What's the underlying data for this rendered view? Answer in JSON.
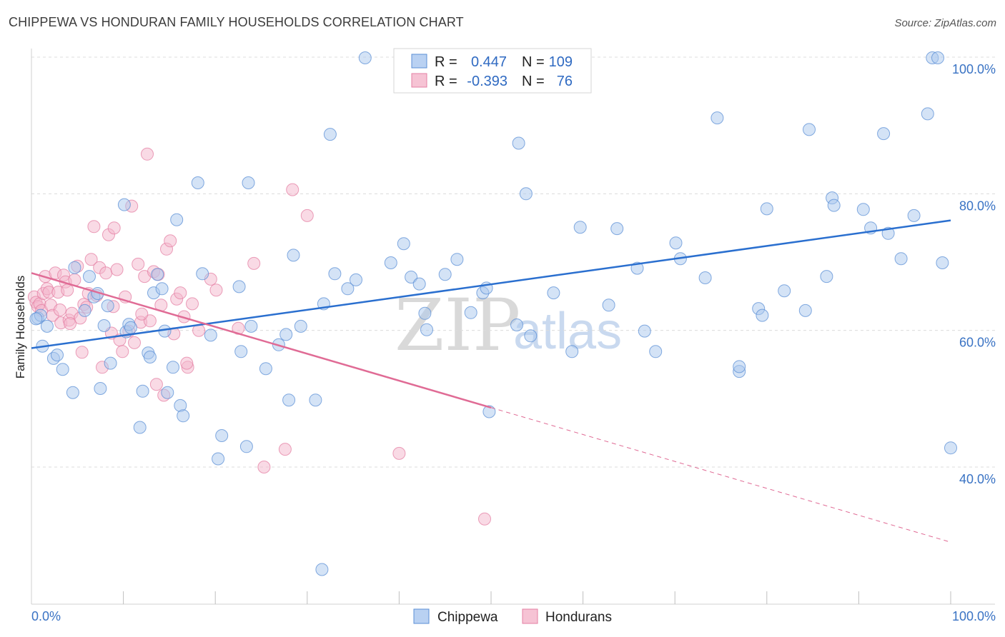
{
  "header": {
    "title": "CHIPPEWA VS HONDURAN FAMILY HOUSEHOLDS CORRELATION CHART",
    "source": "Source: ZipAtlas.com"
  },
  "watermark": {
    "zip": "ZIP",
    "atlas": "atlas"
  },
  "legend": {
    "rows": [
      {
        "r_label": "R =",
        "r_value": "0.447",
        "n_label": "N =",
        "n_value": "109",
        "color": "#5b8fd6",
        "fill": "#b9d1f2"
      },
      {
        "r_label": "R =",
        "r_value": "-0.393",
        "n_label": "N =",
        "n_value": "76",
        "color": "#e47fa3",
        "fill": "#f6c3d4"
      }
    ]
  },
  "bottom_legend": [
    {
      "label": "Chippewa",
      "fill": "#b9d1f2",
      "stroke": "#5b8fd6"
    },
    {
      "label": "Hondurans",
      "fill": "#f6c3d4",
      "stroke": "#e47fa3"
    }
  ],
  "colors": {
    "chippewa": "#5b8fd6",
    "chippewa_fill": "#a9c7ee",
    "chippewa_line": "#2a6fcf",
    "hondurans": "#e47fa3",
    "hondurans_fill": "#f4b6cb",
    "hondurans_line": "#e06b95",
    "grid": "#dcdcdc",
    "tick_label": "#3a73c4"
  },
  "chart_data": {
    "type": "scatter",
    "title": "CHIPPEWA VS HONDURAN FAMILY HOUSEHOLDS CORRELATION CHART",
    "xlabel": "",
    "ylabel": "Family Households",
    "xlim": [
      0,
      100
    ],
    "ylim": [
      21.5,
      102
    ],
    "x_tick_labels": [
      "0.0%",
      "100.0%"
    ],
    "y_ticks": [
      40,
      60,
      80,
      100
    ],
    "y_tick_labels": [
      "40.0%",
      "60.0%",
      "80.0%",
      "100.0%"
    ],
    "grid": true,
    "legend_position": "top-center",
    "series": [
      {
        "name": "Chippewa",
        "r": 0.447,
        "n": 109,
        "trend": {
          "x": [
            0,
            100
          ],
          "y": [
            57.4,
            76.1
          ]
        },
        "points": [
          [
            0.7,
            61.8
          ],
          [
            1.0,
            62.2
          ],
          [
            1.2,
            57.7
          ],
          [
            1.7,
            60.6
          ],
          [
            2.4,
            55.9
          ],
          [
            2.8,
            56.4
          ],
          [
            3.4,
            54.3
          ],
          [
            4.5,
            50.9
          ],
          [
            4.7,
            69.2
          ],
          [
            5.8,
            62.9
          ],
          [
            6.3,
            67.9
          ],
          [
            6.8,
            64.9
          ],
          [
            7.2,
            65.4
          ],
          [
            7.5,
            51.5
          ],
          [
            7.9,
            60.7
          ],
          [
            8.3,
            63.6
          ],
          [
            8.6,
            55.2
          ],
          [
            10.1,
            78.4
          ],
          [
            10.3,
            59.8
          ],
          [
            10.6,
            60.9
          ],
          [
            10.8,
            60.4
          ],
          [
            11.8,
            45.8
          ],
          [
            12.1,
            51.1
          ],
          [
            12.7,
            56.7
          ],
          [
            12.9,
            56.1
          ],
          [
            13.3,
            65.5
          ],
          [
            13.7,
            68.2
          ],
          [
            14.2,
            66.1
          ],
          [
            14.5,
            59.9
          ],
          [
            14.8,
            50.9
          ],
          [
            15.4,
            54.6
          ],
          [
            15.8,
            76.2
          ],
          [
            16.2,
            49.0
          ],
          [
            16.5,
            47.5
          ],
          [
            18.1,
            81.6
          ],
          [
            18.6,
            68.3
          ],
          [
            19.5,
            59.3
          ],
          [
            20.7,
            44.6
          ],
          [
            20.3,
            41.2
          ],
          [
            22.6,
            66.4
          ],
          [
            22.8,
            56.9
          ],
          [
            23.4,
            43.0
          ],
          [
            23.6,
            81.6
          ],
          [
            23.9,
            60.6
          ],
          [
            25.5,
            54.4
          ],
          [
            26.9,
            57.9
          ],
          [
            27.7,
            59.4
          ],
          [
            28.0,
            49.8
          ],
          [
            28.5,
            71.0
          ],
          [
            29.3,
            60.6
          ],
          [
            30.9,
            49.8
          ],
          [
            31.6,
            25.0
          ],
          [
            31.8,
            63.9
          ],
          [
            32.5,
            88.7
          ],
          [
            33.0,
            68.3
          ],
          [
            34.4,
            66.1
          ],
          [
            35.3,
            67.4
          ],
          [
            36.3,
            99.9
          ],
          [
            39.1,
            69.9
          ],
          [
            40.5,
            72.7
          ],
          [
            41.3,
            67.8
          ],
          [
            42.2,
            66.8
          ],
          [
            42.8,
            62.5
          ],
          [
            43.0,
            60.1
          ],
          [
            45.0,
            68.2
          ],
          [
            46.3,
            70.4
          ],
          [
            47.8,
            62.6
          ],
          [
            49.1,
            65.5
          ],
          [
            49.5,
            66.2
          ],
          [
            49.8,
            48.1
          ],
          [
            52.8,
            60.8
          ],
          [
            53.0,
            87.4
          ],
          [
            53.8,
            80.0
          ],
          [
            54.3,
            59.2
          ],
          [
            56.8,
            65.5
          ],
          [
            58.8,
            56.9
          ],
          [
            59.7,
            75.1
          ],
          [
            62.8,
            63.7
          ],
          [
            63.7,
            74.9
          ],
          [
            65.9,
            69.1
          ],
          [
            66.7,
            59.9
          ],
          [
            67.9,
            56.9
          ],
          [
            70.1,
            72.8
          ],
          [
            70.6,
            70.5
          ],
          [
            73.3,
            67.7
          ],
          [
            74.6,
            91.1
          ],
          [
            77.0,
            54.0
          ],
          [
            77.0,
            54.7
          ],
          [
            79.1,
            63.2
          ],
          [
            79.5,
            62.2
          ],
          [
            80.0,
            77.8
          ],
          [
            81.9,
            65.8
          ],
          [
            84.2,
            62.9
          ],
          [
            84.6,
            89.4
          ],
          [
            86.5,
            67.9
          ],
          [
            87.1,
            79.4
          ],
          [
            87.3,
            78.3
          ],
          [
            90.5,
            77.7
          ],
          [
            91.3,
            75.0
          ],
          [
            92.7,
            88.8
          ],
          [
            93.2,
            74.2
          ],
          [
            94.6,
            70.5
          ],
          [
            96.0,
            76.8
          ],
          [
            97.5,
            91.7
          ],
          [
            98.0,
            99.9
          ],
          [
            98.6,
            99.9
          ],
          [
            99.1,
            69.9
          ],
          [
            100.0,
            42.8
          ],
          [
            0.5,
            61.7
          ]
        ]
      },
      {
        "name": "Hondurans",
        "r": -0.393,
        "n": 76,
        "trend": {
          "x": [
            0,
            100
          ],
          "y": [
            68.4,
            29.0
          ]
        },
        "trend_solid_until_x": 50,
        "points": [
          [
            0.3,
            64.9
          ],
          [
            0.5,
            64.1
          ],
          [
            0.7,
            63.5
          ],
          [
            0.9,
            63.9
          ],
          [
            1.1,
            62.9
          ],
          [
            1.3,
            65.4
          ],
          [
            1.5,
            67.9
          ],
          [
            1.7,
            66.1
          ],
          [
            1.9,
            65.6
          ],
          [
            2.1,
            63.7
          ],
          [
            2.3,
            62.2
          ],
          [
            2.6,
            68.4
          ],
          [
            2.9,
            65.6
          ],
          [
            3.2,
            61.1
          ],
          [
            3.5,
            68.1
          ],
          [
            3.7,
            67.1
          ],
          [
            3.9,
            65.9
          ],
          [
            4.1,
            61.5
          ],
          [
            4.4,
            62.5
          ],
          [
            4.7,
            67.4
          ],
          [
            5.0,
            69.4
          ],
          [
            5.3,
            61.8
          ],
          [
            5.7,
            63.8
          ],
          [
            6.0,
            63.4
          ],
          [
            6.2,
            65.4
          ],
          [
            6.5,
            70.4
          ],
          [
            6.8,
            75.2
          ],
          [
            7.1,
            65.1
          ],
          [
            7.4,
            69.2
          ],
          [
            7.7,
            54.6
          ],
          [
            8.1,
            68.4
          ],
          [
            8.4,
            74.0
          ],
          [
            8.7,
            59.6
          ],
          [
            9.0,
            75.0
          ],
          [
            9.3,
            68.9
          ],
          [
            9.6,
            58.6
          ],
          [
            9.9,
            56.9
          ],
          [
            10.2,
            64.9
          ],
          [
            10.6,
            59.9
          ],
          [
            10.9,
            78.2
          ],
          [
            11.2,
            58.2
          ],
          [
            11.6,
            69.7
          ],
          [
            11.9,
            61.2
          ],
          [
            12.3,
            67.9
          ],
          [
            12.6,
            85.8
          ],
          [
            12.9,
            61.4
          ],
          [
            13.3,
            68.6
          ],
          [
            13.6,
            52.1
          ],
          [
            13.8,
            68.2
          ],
          [
            14.1,
            63.7
          ],
          [
            14.4,
            50.5
          ],
          [
            14.7,
            71.9
          ],
          [
            15.1,
            73.1
          ],
          [
            15.5,
            59.5
          ],
          [
            15.8,
            64.6
          ],
          [
            16.2,
            65.5
          ],
          [
            16.6,
            62.0
          ],
          [
            17.0,
            54.6
          ],
          [
            17.5,
            63.9
          ],
          [
            18.2,
            60.0
          ],
          [
            19.5,
            67.5
          ],
          [
            20.1,
            65.9
          ],
          [
            22.5,
            60.3
          ],
          [
            24.2,
            69.8
          ],
          [
            25.3,
            40.0
          ],
          [
            27.6,
            42.6
          ],
          [
            28.4,
            80.6
          ],
          [
            30.0,
            76.8
          ],
          [
            40.0,
            42.0
          ],
          [
            49.3,
            32.4
          ],
          [
            4.2,
            61.0
          ],
          [
            8.9,
            63.5
          ],
          [
            12.0,
            62.4
          ],
          [
            16.9,
            55.2
          ],
          [
            5.5,
            56.8
          ],
          [
            3.1,
            63.0
          ]
        ]
      }
    ]
  }
}
